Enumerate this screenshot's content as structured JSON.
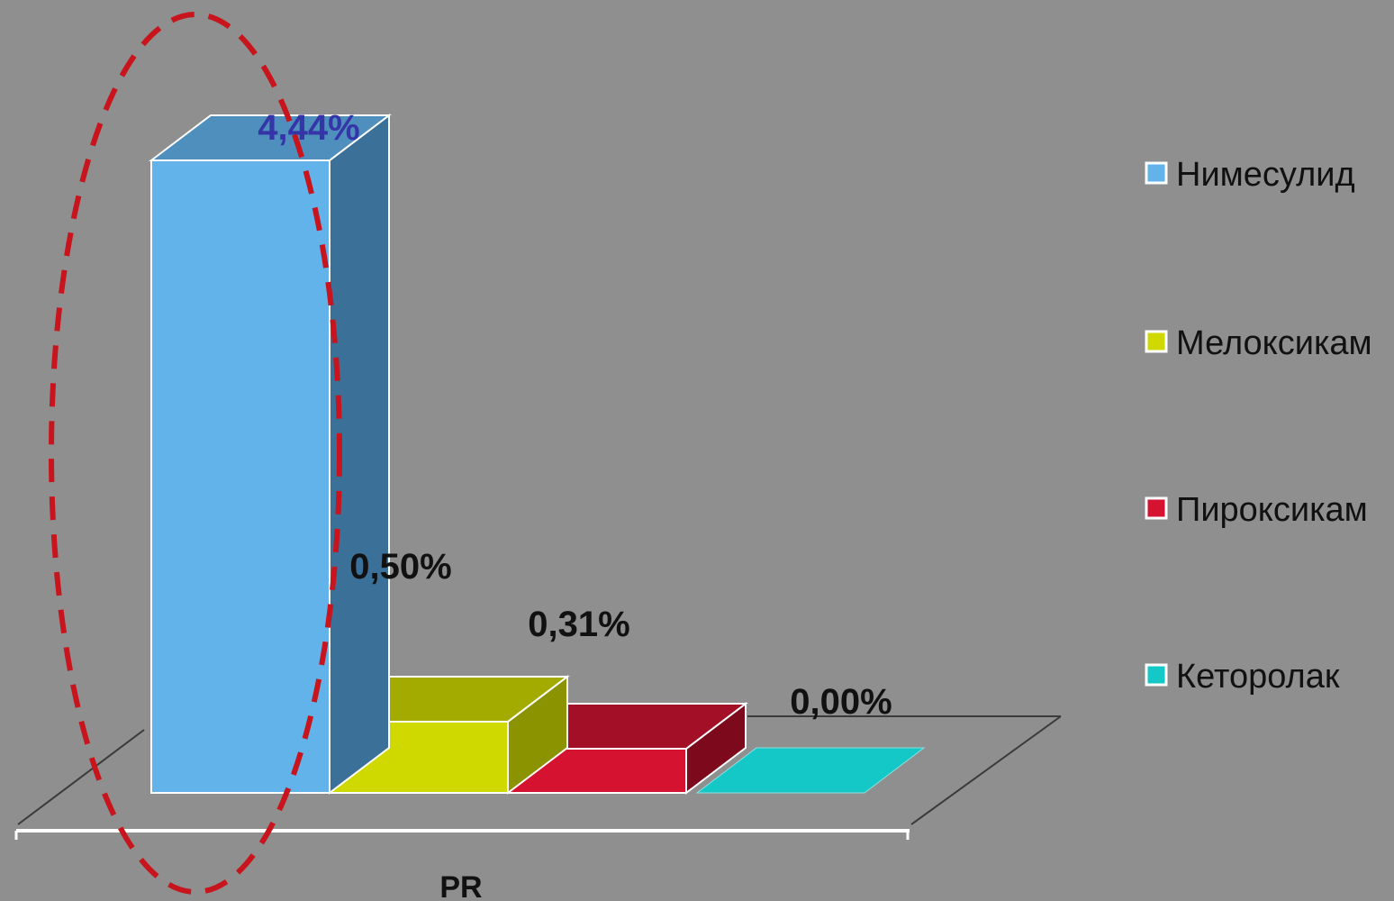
{
  "chart_data": {
    "type": "bar",
    "categories": [
      "PR"
    ],
    "series": [
      {
        "name": "Нимесулид",
        "values": [
          4.44
        ],
        "label": "4,44%",
        "color": "#62b3ea",
        "side_color": "#3b7099",
        "top_color": "#4f8fbd",
        "label_color": "#3535a8"
      },
      {
        "name": "Мелоксикам",
        "values": [
          0.5
        ],
        "label": "0,50%",
        "color": "#cfd900",
        "side_color": "#8c9300",
        "top_color": "#a4ab00",
        "label_color": "#111111"
      },
      {
        "name": "Пироксикам",
        "values": [
          0.31
        ],
        "label": "0,31%",
        "color": "#d5122f",
        "side_color": "#7d0a1c",
        "top_color": "#a30f26",
        "label_color": "#111111"
      },
      {
        "name": "Кеторолак",
        "values": [
          0.0
        ],
        "label": "0,00%",
        "color": "#14c8c8",
        "side_color": "#0e9292",
        "top_color": "#12b4b4",
        "label_color": "#111111"
      }
    ],
    "xlabel": "PR",
    "ylabel": "",
    "ylim": [
      0,
      4.44
    ],
    "grid": false,
    "legend_position": "right",
    "annotation": "red-dashed-ellipse-highlight"
  }
}
